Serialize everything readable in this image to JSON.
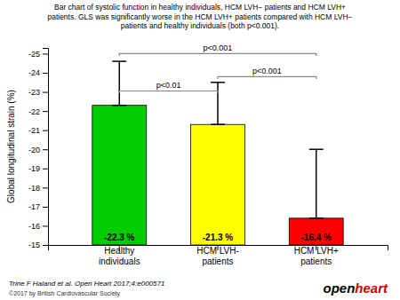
{
  "chart_data": {
    "type": "bar",
    "title": "Bar chart of systolic function in healthy individuals, HCM LVH− patients and HCM LVH+\npatients. GLS was significantly worse in the HCM LVH+ patients compared with HCM LVH−\npatients and healthy individuals (both p<0.001).",
    "ylabel": "Global longitudinal strain (%)",
    "categories": [
      "Healthy\nindividuals",
      "HCM LVH-\npatients",
      "HCM LVH+\npatients"
    ],
    "values": [
      -22.3,
      -21.3,
      -16.4
    ],
    "colors": [
      "#00cc00",
      "#ffff00",
      "#ff0000"
    ],
    "data_labels": true,
    "value_labels": [
      "-22.3 %",
      "-21.3 %",
      "-16.4 %"
    ],
    "error_tops": [
      -24.6,
      -23.5,
      -20.0
    ],
    "ylim": [
      -15.0,
      -25.3
    ],
    "yticks": [
      -25,
      -24,
      -23,
      -22,
      -21,
      -20,
      -19,
      -18,
      -17,
      -16,
      -15
    ],
    "grid": false,
    "brackets": [
      {
        "from": 0,
        "to": 2,
        "y": -25.0,
        "label": "p<0.001"
      },
      {
        "from": 1,
        "to": 2,
        "y": -23.8,
        "label": "p<0.001"
      },
      {
        "from": 0,
        "to": 1,
        "y": -23.05,
        "label": "p<0.01"
      }
    ],
    "footnote": "Trine F Haland et al. Open Heart 2017;4:e000571",
    "copyright": "©2017 by British Cardiovascular Society",
    "logo": [
      {
        "text": "open",
        "color": "#000000"
      },
      {
        "text": "heart",
        "color": "#cc0000"
      }
    ]
  }
}
